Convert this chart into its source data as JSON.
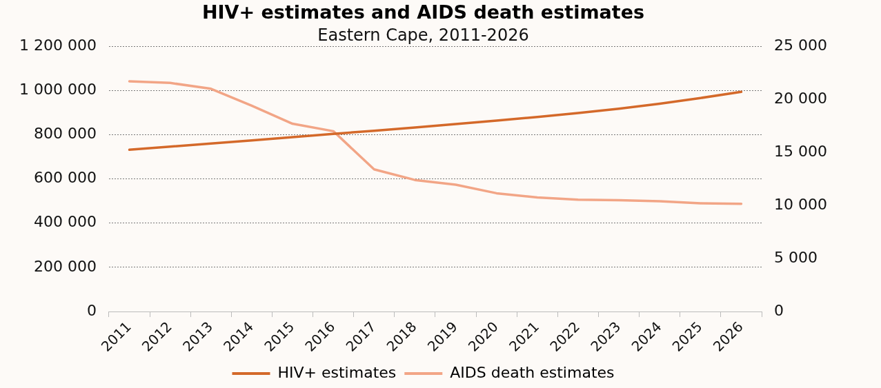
{
  "chart_data": {
    "type": "line",
    "title": "HIV+ estimates and AIDS death estimates",
    "subtitle": "Eastern Cape, 2011-2026",
    "categories": [
      "2011",
      "2012",
      "2013",
      "2014",
      "2015",
      "2016",
      "2017",
      "2018",
      "2019",
      "2020",
      "2021",
      "2022",
      "2023",
      "2024",
      "2025",
      "2026"
    ],
    "series": [
      {
        "name": "HIV+ estimates",
        "color": "#d4692a",
        "values": [
          732000,
          746000,
          760000,
          774000,
          789000,
          804000,
          818000,
          833000,
          848000,
          864000,
          880000,
          898000,
          918000,
          940000,
          966000,
          994000
        ]
      },
      {
        "name": "AIDS death estimates",
        "color": "#f2a586",
        "axis": "y2",
        "values": [
          21700,
          21550,
          21000,
          19400,
          17700,
          17000,
          13400,
          12400,
          11950,
          11150,
          10750,
          10550,
          10500,
          10400,
          10200,
          10150
        ]
      }
    ],
    "ylim": [
      0,
      1200000
    ],
    "yticks": [
      {
        "value": 0,
        "label": "0"
      },
      {
        "value": 200000,
        "label": "200 000"
      },
      {
        "value": 400000,
        "label": "400 000"
      },
      {
        "value": 600000,
        "label": "600 000"
      },
      {
        "value": 800000,
        "label": "800 000"
      },
      {
        "value": 1000000,
        "label": "1 000 000"
      },
      {
        "value": 1200000,
        "label": "1 200 000"
      }
    ],
    "y2lim": [
      0,
      25000
    ],
    "y2ticks": [
      {
        "value": 0,
        "label": "0"
      },
      {
        "value": 5000,
        "label": "5 000"
      },
      {
        "value": 10000,
        "label": "10 000"
      },
      {
        "value": 15000,
        "label": "15 000"
      },
      {
        "value": 20000,
        "label": "20 000"
      },
      {
        "value": 25000,
        "label": "25 000"
      }
    ],
    "grid": "y",
    "legend": "bottom",
    "marker": "none",
    "line_style": "solid"
  }
}
